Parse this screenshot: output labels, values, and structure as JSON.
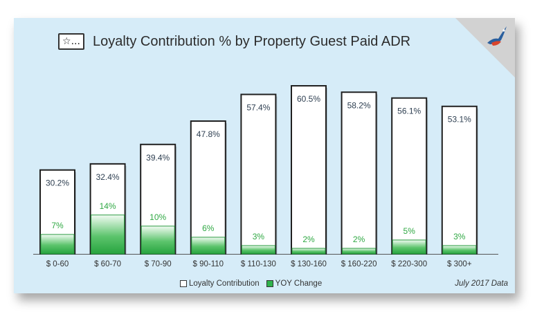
{
  "title": "Loyalty Contribution % by Property Guest Paid ADR",
  "title_icon": "☆...",
  "footnote": "July 2017 Data",
  "icons": {
    "title": "star-tag-icon",
    "logo": "bird-logo-icon"
  },
  "colors": {
    "background": "#d6ecf8",
    "loyalty_bar": "#ffffff",
    "yoy_bar": "#2fb34c",
    "yoy_label": "#2fa843",
    "loyalty_label": "#2d3e50"
  },
  "chart_data": {
    "type": "bar",
    "categories": [
      "$ 0-60",
      "$ 60-70",
      "$ 70-90",
      "$ 90-110",
      "$ 110-130",
      "$ 130-160",
      "$ 160-220",
      "$ 220-300",
      "$ 300+"
    ],
    "series": [
      {
        "name": "Loyalty Contribution",
        "values": [
          30.2,
          32.4,
          39.4,
          47.8,
          57.4,
          60.5,
          58.2,
          56.1,
          53.1
        ],
        "labels": [
          "30.2%",
          "32.4%",
          "39.4%",
          "47.8%",
          "57.4%",
          "60.5%",
          "58.2%",
          "56.1%",
          "53.1%"
        ]
      },
      {
        "name": "YOY Change",
        "values": [
          7,
          14,
          10,
          6,
          3,
          2,
          2,
          5,
          3
        ],
        "labels": [
          "7%",
          "14%",
          "10%",
          "6%",
          "3%",
          "2%",
          "2%",
          "5%",
          "3%"
        ]
      }
    ],
    "ylim": [
      0,
      65
    ],
    "legend_position": "bottom-center",
    "grid": false
  }
}
